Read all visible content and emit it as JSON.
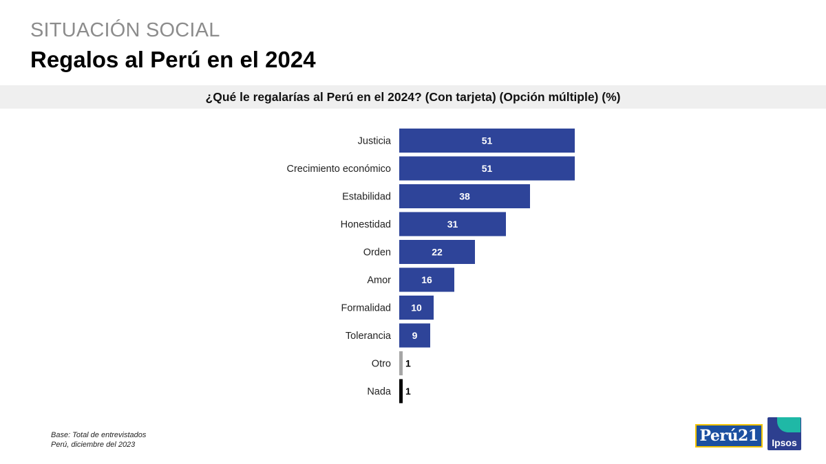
{
  "header": {
    "section": "SITUACIÓN SOCIAL",
    "title": "Regalos al Perú en el 2024"
  },
  "question": "¿Qué le regalarías al Perú en el 2024? (Con tarjeta) (Opción múltiple) (%)",
  "footnote": {
    "line1": "Base: Total de entrevistados",
    "line2": "Perú, diciembre del 2023"
  },
  "logos": {
    "peru21": "Perú21",
    "ipsos": "Ipsos"
  },
  "colors": {
    "bar": "#2e4499",
    "otro": "#a6a6a6",
    "nada": "#000000",
    "label": "#222222"
  },
  "chart_data": {
    "type": "bar",
    "orientation": "horizontal",
    "categories": [
      "Justicia",
      "Crecimiento económico",
      "Estabilidad",
      "Honestidad",
      "Orden",
      "Amor",
      "Formalidad",
      "Tolerancia",
      "Otro",
      "Nada"
    ],
    "values": [
      51,
      51,
      38,
      31,
      22,
      16,
      10,
      9,
      1,
      1
    ],
    "title": "¿Qué le regalarías al Perú en el 2024? (Con tarjeta) (Opción múltiple) (%)",
    "xlabel": "",
    "ylabel": "",
    "grid": false
  }
}
